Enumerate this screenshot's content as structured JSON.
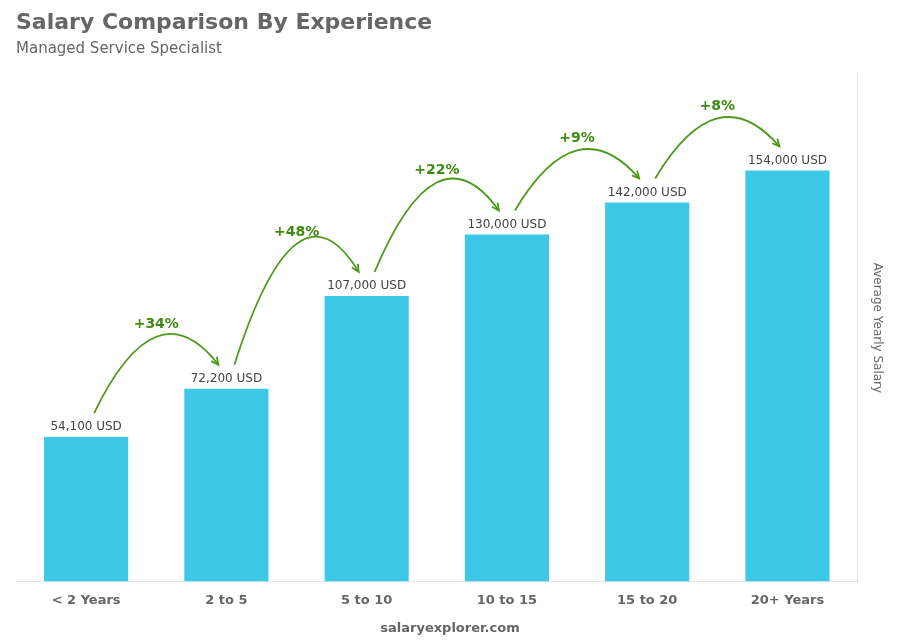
{
  "chart_data": {
    "type": "bar",
    "title": "Salary Comparison By Experience",
    "subtitle": "Managed Service Specialist",
    "categories": [
      "< 2 Years",
      "2 to 5",
      "5 to 10",
      "10 to 15",
      "15 to 20",
      "20+ Years"
    ],
    "values": [
      54100,
      72200,
      107000,
      130000,
      142000,
      154000
    ],
    "value_labels": [
      "54,100 USD",
      "72,200 USD",
      "107,000 USD",
      "130,000 USD",
      "142,000 USD",
      "154,000 USD"
    ],
    "data_labels": true,
    "color": "#3ec8e8",
    "annotations": [
      "+34%",
      "+48%",
      "+22%",
      "+9%",
      "+8%"
    ],
    "ylabel": "Average Yearly Salary",
    "footer": "salaryexplorer.com",
    "ylim": [
      0,
      190000
    ],
    "grid": false,
    "tick_labels": "x"
  }
}
